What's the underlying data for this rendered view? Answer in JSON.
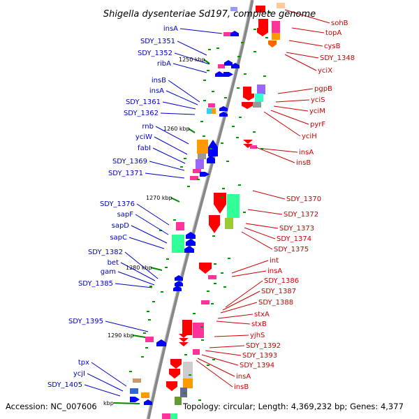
{
  "title": "Shigella dysenteriae Sd197, complete genome",
  "footer": {
    "accession": "Accession: NC_007606",
    "topology": "Topology: circular; Length: 4,369,232 bp; Genes: 4,377"
  },
  "ticks": [
    "1250 kbp",
    "1260 kbp",
    "1270 kbp",
    "1280 kbp",
    "1290 kbp",
    "kbp"
  ],
  "colors": {
    "left_labels": "#0000cc",
    "right_labels": "#cc0000",
    "backbone": "#888888"
  },
  "left_labels": [
    "insA",
    "SDY_1351",
    "SDY_1352",
    "ribA",
    "insB",
    "insA",
    "SDY_1361",
    "SDY_1362",
    "rnb",
    "yciW",
    "fabI",
    "SDY_1369",
    "SDY_1371",
    "SDY_1376",
    "sapF",
    "sapD",
    "sapC",
    "SDY_1382",
    "bet",
    "gam",
    "SDY_1385",
    "SDY_1395",
    "tpx",
    "ycjI",
    "SDY_1405"
  ],
  "right_labels": [
    "sohB",
    "topA",
    "cysB",
    "SDY_1348",
    "yciX",
    "pgpB",
    "yciS",
    "yciM",
    "pyrF",
    "yciH",
    "insA",
    "insB",
    "SDY_1370",
    "SDY_1372",
    "SDY_1373",
    "SDY_1374",
    "SDY_1375",
    "int",
    "insA",
    "SDY_1386",
    "SDY_1387",
    "SDY_1388",
    "stxA",
    "stxB",
    "yjhS",
    "SDY_1392",
    "SDY_1393",
    "SDY_1394",
    "insA",
    "insB"
  ]
}
